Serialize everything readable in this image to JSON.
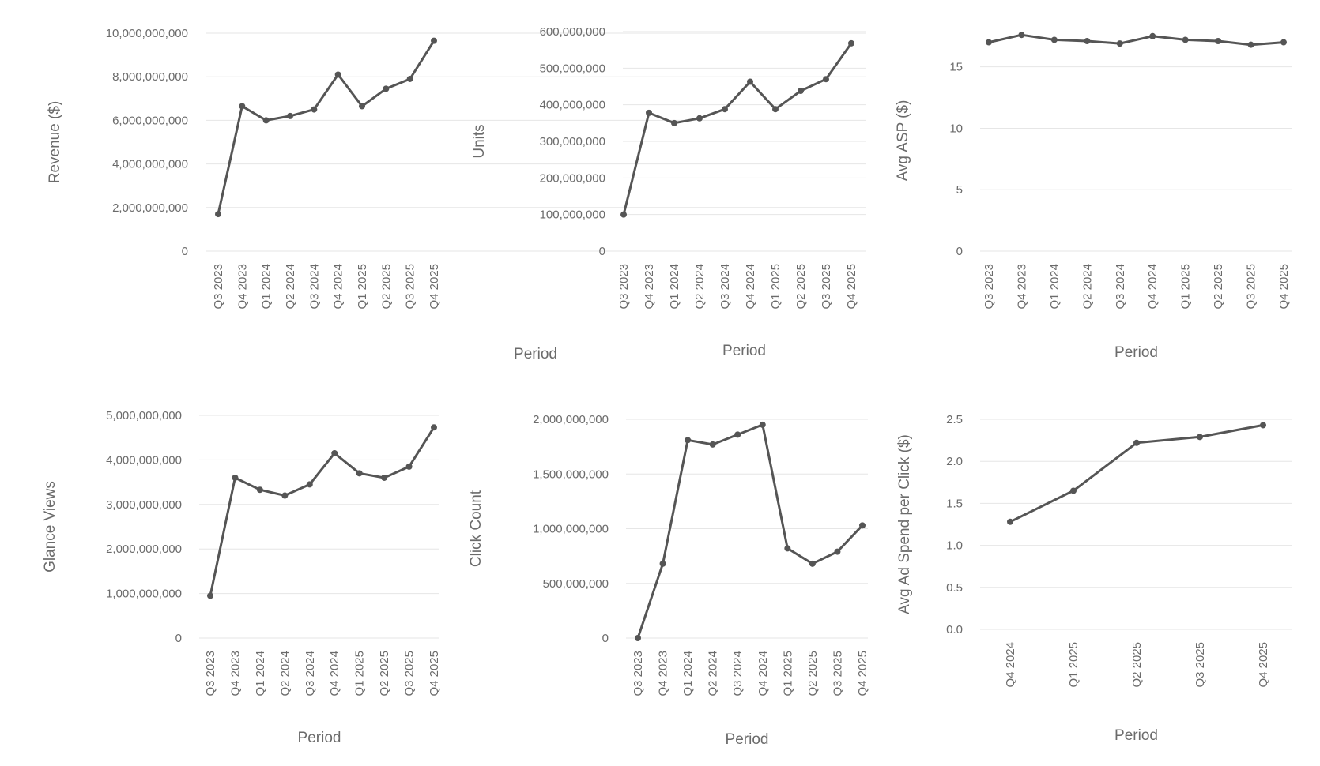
{
  "chart_data": [
    {
      "type": "line",
      "xlabel": "Period",
      "ylabel": "Revenue ($)",
      "x": [
        "Q3 2023",
        "Q4 2023",
        "Q1 2024",
        "Q2 2024",
        "Q3 2024",
        "Q4 2024",
        "Q1 2025",
        "Q2 2025",
        "Q3 2025",
        "Q4 2025"
      ],
      "values": [
        1700000000,
        6650000000,
        6000000000,
        6200000000,
        6500000000,
        8100000000,
        6650000000,
        7450000000,
        7900000000,
        9650000000
      ],
      "yticks": [
        0,
        2000000000,
        4000000000,
        6000000000,
        8000000000,
        10000000000
      ],
      "ytick_labels": [
        "0",
        "2,000,000,000",
        "4,000,000,000",
        "6,000,000,000",
        "8,000,000,000",
        "10,000,000,000"
      ],
      "ylim": [
        0,
        10000000000
      ],
      "grid": true,
      "legend": "none"
    },
    {
      "type": "line",
      "xlabel": "Period",
      "ylabel": "Units",
      "x": [
        "Q3 2023",
        "Q4 2023",
        "Q1 2024",
        "Q2 2024",
        "Q3 2024",
        "Q4 2024",
        "Q1 2025",
        "Q2 2025",
        "Q3 2025",
        "Q4 2025"
      ],
      "values": [
        100000000,
        378000000,
        350000000,
        363000000,
        388000000,
        463000000,
        388000000,
        438000000,
        470000000,
        568000000
      ],
      "yticks": [
        0,
        100000000,
        200000000,
        300000000,
        400000000,
        500000000,
        600000000
      ],
      "ytick_labels": [
        "0",
        "100,000,000",
        "200,000,000",
        "300,000,000",
        "400,000,000",
        "500,000,000",
        "600,000,000"
      ],
      "ylim": [
        0,
        600000000
      ],
      "grid": true,
      "legend": "none"
    },
    {
      "type": "line",
      "xlabel": "Period",
      "ylabel": "Avg ASP ($)",
      "x": [
        "Q3 2023",
        "Q4 2023",
        "Q1 2024",
        "Q2 2024",
        "Q3 2024",
        "Q4 2024",
        "Q1 2025",
        "Q2 2025",
        "Q3 2025",
        "Q4 2025"
      ],
      "values": [
        17.0,
        17.6,
        17.2,
        17.1,
        16.9,
        17.5,
        17.2,
        17.1,
        16.8,
        17.0
      ],
      "yticks": [
        0,
        5,
        10,
        15
      ],
      "ytick_labels": [
        "0",
        "5",
        "10",
        "15"
      ],
      "ylim": [
        0,
        18
      ],
      "grid": true,
      "legend": "none"
    },
    {
      "type": "line",
      "xlabel": "Period",
      "ylabel": "Glance Views",
      "x": [
        "Q3 2023",
        "Q4 2023",
        "Q1 2024",
        "Q2 2024",
        "Q3 2024",
        "Q4 2024",
        "Q1 2025",
        "Q2 2025",
        "Q3 2025",
        "Q4 2025"
      ],
      "values": [
        950000000,
        3600000000,
        3330000000,
        3200000000,
        3450000000,
        4150000000,
        3700000000,
        3600000000,
        3850000000,
        4730000000
      ],
      "yticks": [
        0,
        1000000000,
        2000000000,
        3000000000,
        4000000000,
        5000000000
      ],
      "ytick_labels": [
        "0",
        "1,000,000,000",
        "2,000,000,000",
        "3,000,000,000",
        "4,000,000,000",
        "5,000,000,000"
      ],
      "ylim": [
        0,
        5000000000
      ],
      "grid": true,
      "legend": "none"
    },
    {
      "type": "line",
      "xlabel": "Period",
      "ylabel": "Click Count",
      "x": [
        "Q3 2023",
        "Q4 2023",
        "Q1 2024",
        "Q2 2024",
        "Q3 2024",
        "Q4 2024",
        "Q1 2025",
        "Q2 2025",
        "Q3 2025",
        "Q4 2025"
      ],
      "values": [
        0,
        680000000,
        1810000000,
        1770000000,
        1860000000,
        1950000000,
        820000000,
        680000000,
        790000000,
        1030000000
      ],
      "yticks": [
        0,
        500000000,
        1000000000,
        1500000000,
        2000000000
      ],
      "ytick_labels": [
        "0",
        "500,000,000",
        "1,000,000,000",
        "1,500,000,000",
        "2,000,000,000"
      ],
      "ylim": [
        0,
        2000000000
      ],
      "grid": true,
      "legend": "none"
    },
    {
      "type": "line",
      "xlabel": "Period",
      "ylabel": "Avg Ad Spend per Click ($)",
      "x": [
        "Q4 2024",
        "Q1 2025",
        "Q2 2025",
        "Q3 2025",
        "Q4 2025"
      ],
      "values": [
        1.28,
        1.65,
        2.22,
        2.29,
        2.43
      ],
      "yticks": [
        0.0,
        0.5,
        1.0,
        1.5,
        2.0,
        2.5
      ],
      "ytick_labels": [
        "0.0",
        "0.5",
        "1.0",
        "1.5",
        "2.0",
        "2.5"
      ],
      "ylim": [
        0,
        2.5
      ],
      "grid": true,
      "legend": "none"
    }
  ]
}
